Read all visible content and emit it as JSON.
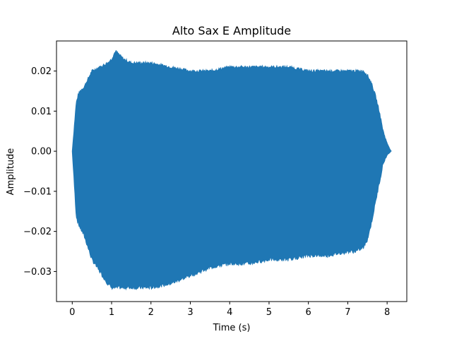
{
  "chart_data": {
    "type": "area",
    "title": "Alto Sax E Amplitude",
    "xlabel": "Time (s)",
    "ylabel": "Amplitude",
    "xlim": [
      -0.4,
      8.5
    ],
    "ylim": [
      -0.0375,
      0.0275
    ],
    "xticks": [
      0,
      1,
      2,
      3,
      4,
      5,
      6,
      7,
      8
    ],
    "xtick_labels": [
      "0",
      "1",
      "2",
      "3",
      "4",
      "5",
      "6",
      "7",
      "8"
    ],
    "yticks": [
      -0.03,
      -0.02,
      -0.01,
      0.0,
      0.01,
      0.02
    ],
    "ytick_labels": [
      "−0.03",
      "−0.02",
      "−0.01",
      "0.00",
      "0.01",
      "0.02"
    ],
    "grid": false,
    "color": "#1f77b4",
    "series": [
      {
        "name": "",
        "description": "waveform envelope (upper/lower)",
        "x": [
          0.0,
          0.05,
          0.1,
          0.15,
          0.2,
          0.3,
          0.4,
          0.5,
          0.7,
          0.9,
          1.0,
          1.1,
          1.2,
          1.3,
          1.5,
          2.0,
          2.5,
          3.0,
          3.5,
          4.0,
          4.5,
          5.0,
          5.5,
          6.0,
          6.5,
          7.0,
          7.2,
          7.4,
          7.5,
          7.6,
          7.7,
          7.8,
          7.9,
          8.0,
          8.05,
          8.1
        ],
        "upper": [
          0.0,
          0.006,
          0.012,
          0.014,
          0.015,
          0.016,
          0.018,
          0.02,
          0.021,
          0.022,
          0.023,
          0.025,
          0.024,
          0.023,
          0.022,
          0.022,
          0.021,
          0.02,
          0.02,
          0.021,
          0.021,
          0.021,
          0.021,
          0.02,
          0.02,
          0.02,
          0.02,
          0.02,
          0.019,
          0.017,
          0.014,
          0.01,
          0.005,
          0.002,
          0.001,
          0.0
        ],
        "lower": [
          0.0,
          -0.008,
          -0.016,
          -0.018,
          -0.019,
          -0.021,
          -0.024,
          -0.027,
          -0.03,
          -0.033,
          -0.034,
          -0.034,
          -0.034,
          -0.034,
          -0.034,
          -0.034,
          -0.033,
          -0.031,
          -0.029,
          -0.028,
          -0.028,
          -0.027,
          -0.027,
          -0.026,
          -0.026,
          -0.025,
          -0.025,
          -0.024,
          -0.022,
          -0.018,
          -0.013,
          -0.008,
          -0.003,
          -0.001,
          -0.0005,
          0.0
        ]
      }
    ]
  }
}
